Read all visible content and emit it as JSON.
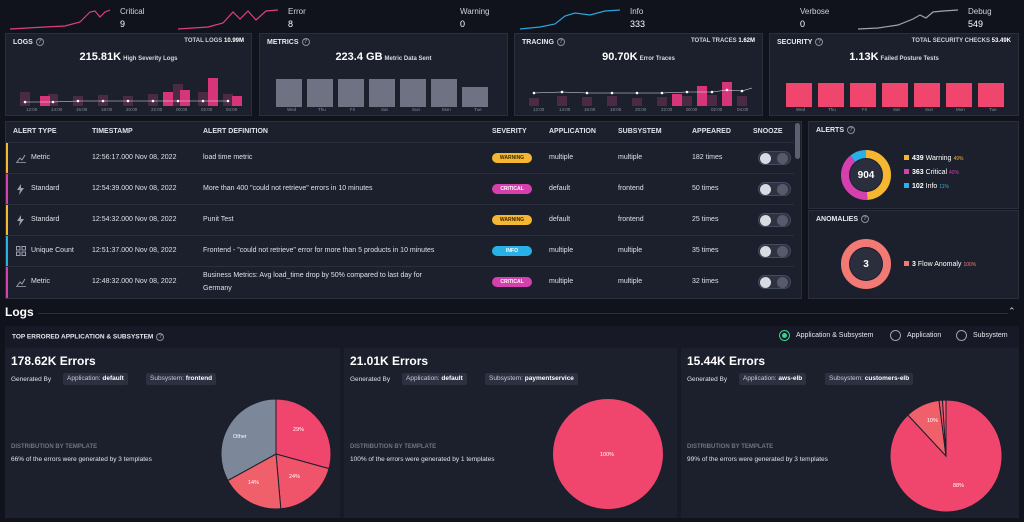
{
  "severities": [
    {
      "name": "Critical",
      "count": "9",
      "color": "#e0407c"
    },
    {
      "name": "Error",
      "count": "8",
      "color": "#e0407c"
    },
    {
      "name": "Warning",
      "count": "0",
      "color": "#9aa0b1"
    },
    {
      "name": "Info",
      "count": "333",
      "color": "#29a8dc"
    },
    {
      "name": "Verbose",
      "count": "0",
      "color": "#9aa0b1"
    },
    {
      "name": "Debug",
      "count": "549",
      "color": "#9aa0b1"
    }
  ],
  "panels": {
    "logs": {
      "title": "LOGS",
      "total_label": "TOTAL LOGS",
      "total_value": "10.99M",
      "big": "215.81K",
      "big_label": "High Severity Logs",
      "axis": [
        "12:00",
        "14:00",
        "16:00",
        "18:00",
        "20:00",
        "22:00",
        "00:00",
        "02:00",
        "04:00"
      ]
    },
    "metrics": {
      "title": "METRICS",
      "big": "223.4 GB",
      "big_label": "Metric Data Sent",
      "axis": [
        "Wed",
        "Thu",
        "Fri",
        "Sat",
        "Sun",
        "Mon",
        "Tue"
      ]
    },
    "tracing": {
      "title": "TRACING",
      "total_label": "TOTAL TRACES",
      "total_value": "1.62M",
      "big": "90.70K",
      "big_label": "Error Traces",
      "axis": [
        "12:00",
        "14:00",
        "16:00",
        "18:00",
        "20:00",
        "22:00",
        "00:00",
        "02:00",
        "04:00"
      ]
    },
    "security": {
      "title": "SECURITY",
      "total_label": "TOTAL SECURITY CHECKS",
      "total_value": "53.49K",
      "big": "1.13K",
      "big_label": "Failed Posture Tests",
      "axis": [
        "Wed",
        "Thu",
        "Fri",
        "Sat",
        "Sun",
        "Mon",
        "Tue"
      ]
    }
  },
  "table": {
    "headers": {
      "type": "ALERT TYPE",
      "timestamp": "TIMESTAMP",
      "definition": "ALERT DEFINITION",
      "severity": "SEVERITY",
      "application": "APPLICATION",
      "subsystem": "SUBSYSTEM",
      "appeared": "APPEARED",
      "snooze": "SNOOZE"
    },
    "rows": [
      {
        "type": "Metric",
        "timestamp": "12:56:17.000 Nov 08, 2022",
        "definition": "load time metric",
        "definition2": "",
        "severity": "WARNING",
        "application": "multiple",
        "subsystem": "multiple",
        "appeared": "182 times"
      },
      {
        "type": "Standard",
        "timestamp": "12:54:39.000 Nov 08, 2022",
        "definition": "More than 400 \"could not retrieve\" errors in 10 minutes",
        "definition2": "",
        "severity": "CRITICAL",
        "application": "default",
        "subsystem": "frontend",
        "appeared": "50 times"
      },
      {
        "type": "Standard",
        "timestamp": "12:54:32.000 Nov 08, 2022",
        "definition": "Punit Test",
        "definition2": "",
        "severity": "WARNING",
        "application": "default",
        "subsystem": "frontend",
        "appeared": "25 times"
      },
      {
        "type": "Unique Count",
        "timestamp": "12:51:37.000 Nov 08, 2022",
        "definition": "Frontend - \"could not retrieve\" error for more than 5 products in 10 minutes",
        "definition2": "",
        "severity": "INFO",
        "application": "multiple",
        "subsystem": "multiple",
        "appeared": "35 times"
      },
      {
        "type": "Metric",
        "timestamp": "12:48:32.000 Nov 08, 2022",
        "definition": "Business Metrics: Avg load_time drop by 50% compared to last day for",
        "definition2": "Germany",
        "severity": "CRITICAL",
        "application": "multiple",
        "subsystem": "multiple",
        "appeared": "32 times"
      }
    ]
  },
  "alerts": {
    "title": "ALERTS",
    "total": "904",
    "items": [
      {
        "count": "439",
        "label": "Warning",
        "pct": "49%",
        "color": "#f5b731"
      },
      {
        "count": "363",
        "label": "Critical",
        "pct": "40%",
        "color": "#d63fae"
      },
      {
        "count": "102",
        "label": "Info",
        "pct": "11%",
        "color": "#29b0e6"
      }
    ]
  },
  "anomalies": {
    "title": "ANOMALIES",
    "total": "3",
    "count": "3",
    "label": "Flow Anomaly",
    "pct": "100%"
  },
  "logs_section": {
    "title": "Logs",
    "top_title": "TOP ERRORED APPLICATION & SUBSYSTEM",
    "radio_options": [
      "Application & Subsystem",
      "Application",
      "Subsystem"
    ],
    "cards": [
      {
        "errors": "178.62K Errors",
        "generated_by": "Generated By",
        "app_label": "Application:",
        "app": "default",
        "sub_label": "Subsystem:",
        "sub": "frontend",
        "dist_title": "DISTRIBUTION BY TEMPLATE",
        "dist_text": "66% of the errors were generated by 3 templates",
        "slices": [
          {
            "label": "29%",
            "value": 29
          },
          {
            "label": "24%",
            "value": 24
          },
          {
            "label": "14%",
            "value": 14
          },
          {
            "label": "Other",
            "value": 33
          }
        ]
      },
      {
        "errors": "21.01K Errors",
        "generated_by": "Generated By",
        "app_label": "Application:",
        "app": "default",
        "sub_label": "Subsystem:",
        "sub": "paymentservice",
        "dist_title": "DISTRIBUTION BY TEMPLATE",
        "dist_text": "100% of the errors were generated by 1 templates",
        "slices": [
          {
            "label": "100%",
            "value": 100
          }
        ]
      },
      {
        "errors": "15.44K Errors",
        "generated_by": "Generated By",
        "app_label": "Application:",
        "app": "aws-elb",
        "sub_label": "Subsystem:",
        "sub": "customers-elb",
        "dist_title": "DISTRIBUTION BY TEMPLATE",
        "dist_text": "99% of the errors were generated by 3 templates",
        "slices": [
          {
            "label": "88%",
            "value": 88
          },
          {
            "label": "10%",
            "value": 10
          },
          {
            "label": "",
            "value": 1
          },
          {
            "label": "",
            "value": 1
          }
        ]
      }
    ]
  }
}
